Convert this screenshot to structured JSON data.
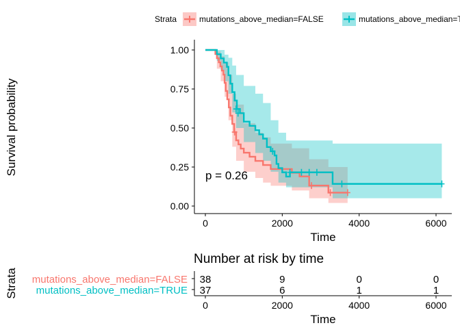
{
  "legend": {
    "title": "Strata",
    "items": [
      "mutations_above_median=FALSE",
      "mutations_above_median=TRUE"
    ]
  },
  "colors": {
    "false_series": "#F8766D",
    "true_series": "#00BFC4",
    "axis": "#000000"
  },
  "chart_data": [
    {
      "type": "line",
      "subtype": "kaplan-meier",
      "xlabel": "Time",
      "ylabel": "Survival probability",
      "xlim": [
        0,
        6200
      ],
      "ylim": [
        0,
        1
      ],
      "xticks": [
        0,
        2000,
        4000,
        6000
      ],
      "yticks": [
        0.0,
        0.25,
        0.5,
        0.75,
        1.0
      ],
      "ytick_labels": [
        "0.00",
        "0.25",
        "0.50",
        "0.75",
        "1.00"
      ],
      "annotation": "p = 0.26",
      "grid": false,
      "legend_position": "top",
      "series": [
        {
          "name": "mutations_above_median=FALSE",
          "color": "#F8766D",
          "steps": [
            [
              0,
              1.0
            ],
            [
              230,
              1.0
            ],
            [
              260,
              0.974
            ],
            [
              300,
              0.947
            ],
            [
              350,
              0.921
            ],
            [
              390,
              0.895
            ],
            [
              430,
              0.868
            ],
            [
              470,
              0.842
            ],
            [
              500,
              0.789
            ],
            [
              530,
              0.737
            ],
            [
              570,
              0.684
            ],
            [
              610,
              0.632
            ],
            [
              650,
              0.579
            ],
            [
              700,
              0.526
            ],
            [
              750,
              0.474
            ],
            [
              800,
              0.421
            ],
            [
              860,
              0.395
            ],
            [
              920,
              0.368
            ],
            [
              1000,
              0.342
            ],
            [
              1150,
              0.316
            ],
            [
              1300,
              0.289
            ],
            [
              1500,
              0.263
            ],
            [
              1700,
              0.237
            ],
            [
              2250,
              0.213
            ],
            [
              2450,
              0.19
            ],
            [
              2700,
              0.131
            ],
            [
              3200,
              0.086
            ],
            [
              3700,
              0.086
            ]
          ],
          "censored": [
            [
              760,
              0.474
            ],
            [
              2760,
              0.131
            ],
            [
              3250,
              0.086
            ],
            [
              3700,
              0.086
            ]
          ],
          "ci_upper": [
            [
              0,
              1.0
            ],
            [
              230,
              1.0
            ],
            [
              300,
              0.99
            ],
            [
              400,
              0.96
            ],
            [
              500,
              0.92
            ],
            [
              600,
              0.84
            ],
            [
              700,
              0.72
            ],
            [
              800,
              0.65
            ],
            [
              1000,
              0.53
            ],
            [
              1300,
              0.47
            ],
            [
              1500,
              0.44
            ],
            [
              1700,
              0.4
            ],
            [
              2250,
              0.37
            ],
            [
              2700,
              0.3
            ],
            [
              3200,
              0.25
            ],
            [
              3700,
              0.25
            ]
          ],
          "ci_lower": [
            [
              0,
              1.0
            ],
            [
              230,
              1.0
            ],
            [
              300,
              0.88
            ],
            [
              400,
              0.8
            ],
            [
              500,
              0.7
            ],
            [
              600,
              0.55
            ],
            [
              700,
              0.38
            ],
            [
              800,
              0.29
            ],
            [
              1000,
              0.22
            ],
            [
              1300,
              0.18
            ],
            [
              1500,
              0.15
            ],
            [
              1700,
              0.13
            ],
            [
              2250,
              0.1
            ],
            [
              2700,
              0.05
            ],
            [
              3200,
              0.02
            ],
            [
              3700,
              0.02
            ]
          ]
        },
        {
          "name": "mutations_above_median=TRUE",
          "color": "#00BFC4",
          "steps": [
            [
              0,
              1.0
            ],
            [
              250,
              1.0
            ],
            [
              300,
              0.973
            ],
            [
              400,
              0.946
            ],
            [
              480,
              0.919
            ],
            [
              560,
              0.892
            ],
            [
              600,
              0.838
            ],
            [
              650,
              0.784
            ],
            [
              700,
              0.73
            ],
            [
              760,
              0.676
            ],
            [
              820,
              0.622
            ],
            [
              900,
              0.595
            ],
            [
              1000,
              0.541
            ],
            [
              1150,
              0.514
            ],
            [
              1300,
              0.486
            ],
            [
              1400,
              0.459
            ],
            [
              1500,
              0.432
            ],
            [
              1600,
              0.378
            ],
            [
              1700,
              0.351
            ],
            [
              1800,
              0.324
            ],
            [
              1850,
              0.27
            ],
            [
              1900,
              0.243
            ],
            [
              2000,
              0.216
            ],
            [
              2100,
              0.189
            ],
            [
              2200,
              0.216
            ],
            [
              3300,
              0.216
            ],
            [
              3310,
              0.142
            ],
            [
              6150,
              0.142
            ]
          ],
          "censored": [
            [
              800,
              0.622
            ],
            [
              850,
              0.595
            ],
            [
              1750,
              0.351
            ],
            [
              2200,
              0.216
            ],
            [
              2500,
              0.216
            ],
            [
              2700,
              0.216
            ],
            [
              2900,
              0.216
            ],
            [
              3550,
              0.142
            ],
            [
              6150,
              0.142
            ]
          ],
          "ci_upper": [
            [
              0,
              1.0
            ],
            [
              250,
              1.0
            ],
            [
              300,
              1.0
            ],
            [
              400,
              1.0
            ],
            [
              500,
              0.97
            ],
            [
              600,
              0.95
            ],
            [
              700,
              0.9
            ],
            [
              800,
              0.84
            ],
            [
              1000,
              0.77
            ],
            [
              1300,
              0.72
            ],
            [
              1500,
              0.66
            ],
            [
              1700,
              0.55
            ],
            [
              1900,
              0.47
            ],
            [
              2100,
              0.42
            ],
            [
              2200,
              0.42
            ],
            [
              3300,
              0.42
            ],
            [
              3310,
              0.4
            ],
            [
              6150,
              0.4
            ]
          ],
          "ci_lower": [
            [
              0,
              1.0
            ],
            [
              250,
              1.0
            ],
            [
              300,
              0.93
            ],
            [
              400,
              0.87
            ],
            [
              500,
              0.8
            ],
            [
              600,
              0.72
            ],
            [
              700,
              0.6
            ],
            [
              800,
              0.5
            ],
            [
              1000,
              0.41
            ],
            [
              1300,
              0.34
            ],
            [
              1500,
              0.29
            ],
            [
              1700,
              0.22
            ],
            [
              1900,
              0.15
            ],
            [
              2100,
              0.12
            ],
            [
              2200,
              0.12
            ],
            [
              3300,
              0.12
            ],
            [
              3310,
              0.05
            ],
            [
              6150,
              0.05
            ]
          ]
        }
      ]
    },
    {
      "type": "table",
      "title": "Number at risk by time",
      "xlabel": "Time",
      "ylabel": "Strata",
      "xticks": [
        0,
        2000,
        4000,
        6000
      ],
      "rows": [
        {
          "name": "mutations_above_median=FALSE",
          "color": "#F8766D",
          "values": [
            38,
            9,
            0,
            0
          ]
        },
        {
          "name": "mutations_above_median=TRUE",
          "color": "#00BFC4",
          "values": [
            37,
            6,
            1,
            1
          ]
        }
      ]
    }
  ]
}
